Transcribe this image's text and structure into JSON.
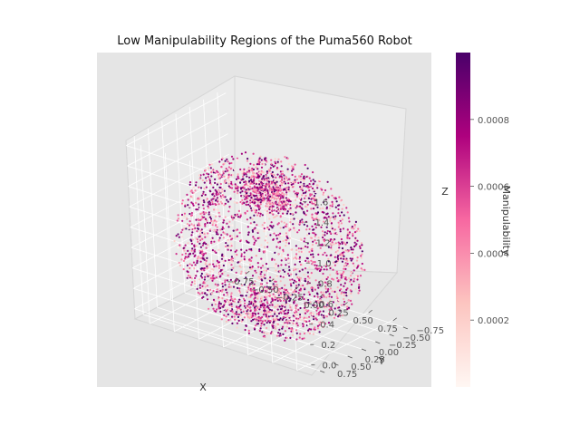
{
  "chart_data": {
    "type": "scatter",
    "projection": "3d",
    "title": "Low Manipulability Regions of the Puma560 Robot",
    "xlabel": "X",
    "ylabel": "Y",
    "zlabel": "Z",
    "x_ticks": [
      "−0.75",
      "−0.50",
      "−0.25",
      "0.00",
      "0.25",
      "0.50",
      "0.75"
    ],
    "y_ticks": [
      "−0.75",
      "−0.50",
      "−0.25",
      "0.00",
      "0.25",
      "0.50",
      "0.75"
    ],
    "z_ticks": [
      "0.0",
      "0.2",
      "0.4",
      "0.6",
      "0.8",
      "1.0",
      "1.2",
      "1.4",
      "1.6"
    ],
    "xlim": [
      -0.9,
      0.9
    ],
    "ylim": [
      -0.9,
      0.9
    ],
    "zlim": [
      -0.1,
      1.65
    ],
    "grid": true,
    "colormap": "RdPu",
    "point_distribution": {
      "shape": "sphere",
      "center": [
        0.0,
        0.0,
        0.63
      ],
      "radius": 0.86,
      "dense_regions_z": [
        1.15,
        0.1
      ],
      "approx_points": 2500
    },
    "colorbar": {
      "label": "Manipulability",
      "range": [
        0.0,
        0.001
      ],
      "ticks": [
        "0.0002",
        "0.0004",
        "0.0006",
        "0.0008"
      ],
      "tick_values": [
        0.0002,
        0.0004,
        0.0006,
        0.0008
      ]
    }
  }
}
